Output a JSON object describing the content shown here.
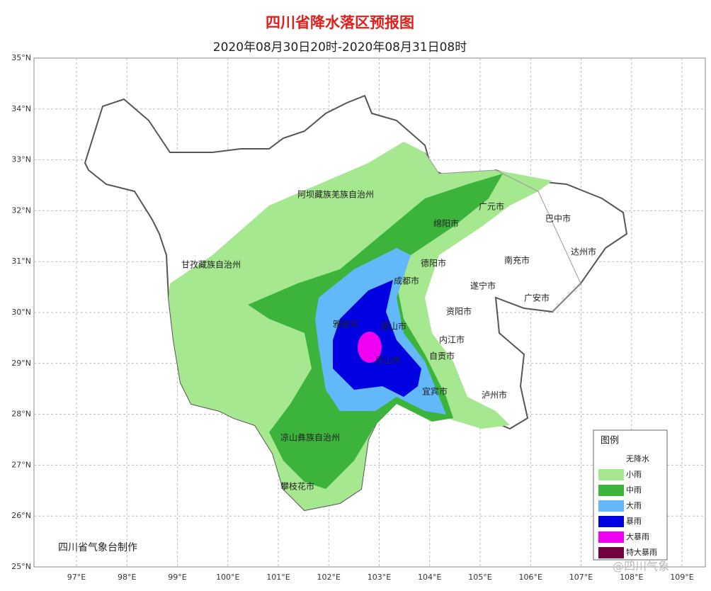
{
  "header": {
    "title": "四川省降水落区预报图",
    "subtitle": "2020年08月30日20时-2020年08月31日08时"
  },
  "axes": {
    "lat_labels": [
      "35°N",
      "34°N",
      "33°N",
      "32°N",
      "31°N",
      "30°N",
      "29°N",
      "28°N",
      "27°N",
      "26°N",
      "25°N"
    ],
    "lon_labels": [
      "97°E",
      "98°E",
      "99°E",
      "100°E",
      "101°E",
      "102°E",
      "103°E",
      "104°E",
      "105°E",
      "106°E",
      "107°E",
      "108°E",
      "109°E"
    ]
  },
  "places": [
    "阿坝藏族羌族自治州",
    "甘孜藏族自治州",
    "广元市",
    "巴中市",
    "绵阳市",
    "达州市",
    "南充市",
    "德阳市",
    "成都市",
    "遂宁市",
    "广安市",
    "资阳市",
    "雅安市",
    "眉山市",
    "内江市",
    "乐山市",
    "自贡市",
    "宜宾市",
    "泸州市",
    "凉山彝族自治州",
    "攀枝花市"
  ],
  "legend": {
    "title": "图例",
    "items": [
      {
        "label": "无降水",
        "color": "#ffffff"
      },
      {
        "label": "小雨",
        "color": "#a5e88f"
      },
      {
        "label": "中雨",
        "color": "#3cb43c"
      },
      {
        "label": "大雨",
        "color": "#62b8f8"
      },
      {
        "label": "暴雨",
        "color": "#0000e0"
      },
      {
        "label": "大暴雨",
        "color": "#f000f0"
      },
      {
        "label": "特大暴雨",
        "color": "#740040"
      }
    ]
  },
  "credit": "四川省气象台制作",
  "watermark": "@四川气象"
}
